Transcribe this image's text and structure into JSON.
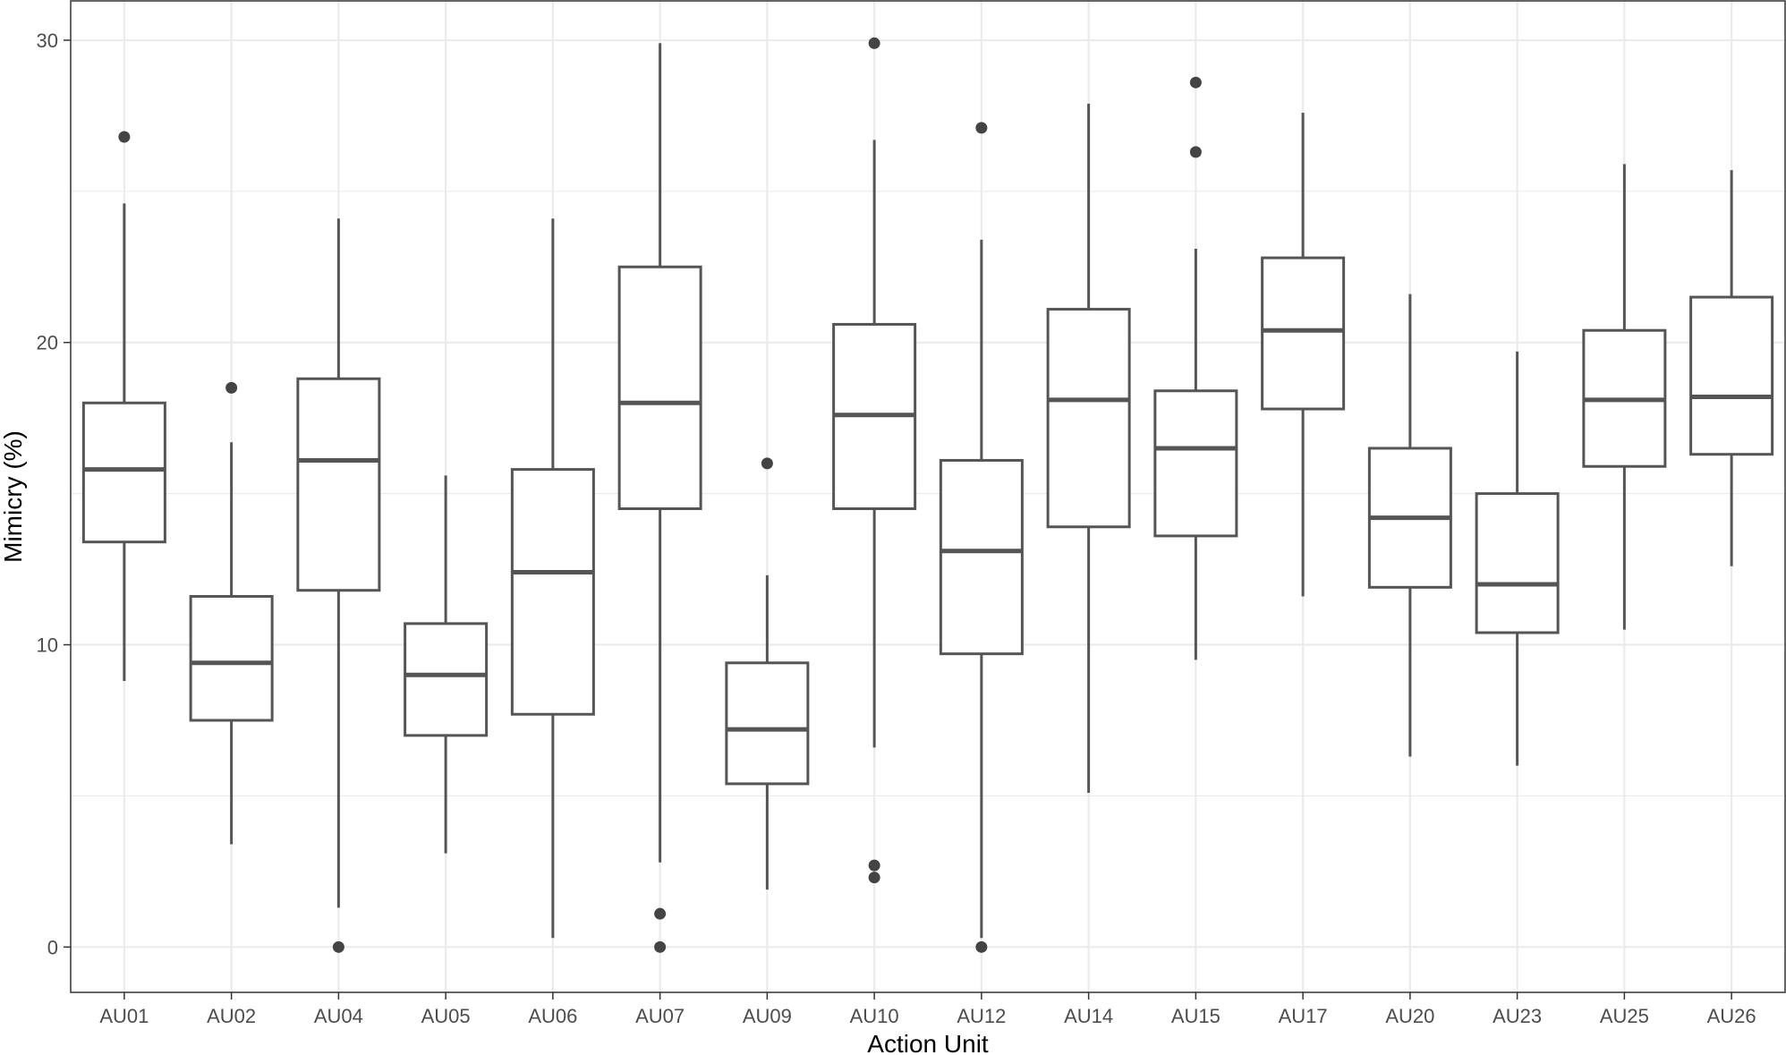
{
  "chart_data": {
    "type": "boxplot",
    "xlabel": "Action Unit",
    "ylabel": "Mimicry (%)",
    "ylim": [
      -1.5,
      31.3
    ],
    "yticks": [
      0,
      10,
      20,
      30
    ],
    "ytick_labels": [
      "0",
      "10",
      "20",
      "30"
    ],
    "y_minor_ticks": [
      5,
      15,
      25
    ],
    "grid": true,
    "theme": "bw",
    "colors": {
      "box_line": "#555555",
      "outlier": "#444444",
      "grid": "#ebebeb",
      "panel_border": "#333333"
    },
    "categories": [
      "AU01",
      "AU02",
      "AU04",
      "AU05",
      "AU06",
      "AU07",
      "AU09",
      "AU10",
      "AU12",
      "AU14",
      "AU15",
      "AU17",
      "AU20",
      "AU23",
      "AU25",
      "AU26"
    ],
    "boxes": [
      {
        "label": "AU01",
        "whisker_low": 8.8,
        "q1": 13.4,
        "median": 15.8,
        "q3": 18.0,
        "whisker_high": 24.6,
        "outliers": [
          26.8
        ]
      },
      {
        "label": "AU02",
        "whisker_low": 3.4,
        "q1": 7.5,
        "median": 9.4,
        "q3": 11.6,
        "whisker_high": 16.7,
        "outliers": [
          18.5
        ]
      },
      {
        "label": "AU04",
        "whisker_low": 1.3,
        "q1": 11.8,
        "median": 16.1,
        "q3": 18.8,
        "whisker_high": 24.1,
        "outliers": [
          0.0
        ]
      },
      {
        "label": "AU05",
        "whisker_low": 3.1,
        "q1": 7.0,
        "median": 9.0,
        "q3": 10.7,
        "whisker_high": 15.6,
        "outliers": []
      },
      {
        "label": "AU06",
        "whisker_low": 0.3,
        "q1": 7.7,
        "median": 12.4,
        "q3": 15.8,
        "whisker_high": 24.1,
        "outliers": []
      },
      {
        "label": "AU07",
        "whisker_low": 2.8,
        "q1": 14.5,
        "median": 18.0,
        "q3": 22.5,
        "whisker_high": 29.9,
        "outliers": [
          1.1,
          0.0
        ]
      },
      {
        "label": "AU09",
        "whisker_low": 1.9,
        "q1": 5.4,
        "median": 7.2,
        "q3": 9.4,
        "whisker_high": 12.3,
        "outliers": [
          16.0
        ]
      },
      {
        "label": "AU10",
        "whisker_low": 6.6,
        "q1": 14.5,
        "median": 17.6,
        "q3": 20.6,
        "whisker_high": 26.7,
        "outliers": [
          29.9,
          2.7,
          2.3
        ]
      },
      {
        "label": "AU12",
        "whisker_low": 0.3,
        "q1": 9.7,
        "median": 13.1,
        "q3": 16.1,
        "whisker_high": 23.4,
        "outliers": [
          27.1,
          0.0
        ]
      },
      {
        "label": "AU14",
        "whisker_low": 5.1,
        "q1": 13.9,
        "median": 18.1,
        "q3": 21.1,
        "whisker_high": 27.9,
        "outliers": []
      },
      {
        "label": "AU15",
        "whisker_low": 9.5,
        "q1": 13.6,
        "median": 16.5,
        "q3": 18.4,
        "whisker_high": 23.1,
        "outliers": [
          28.6,
          26.3
        ]
      },
      {
        "label": "AU17",
        "whisker_low": 11.6,
        "q1": 17.8,
        "median": 20.4,
        "q3": 22.8,
        "whisker_high": 27.6,
        "outliers": []
      },
      {
        "label": "AU20",
        "whisker_low": 6.3,
        "q1": 11.9,
        "median": 14.2,
        "q3": 16.5,
        "whisker_high": 21.6,
        "outliers": []
      },
      {
        "label": "AU23",
        "whisker_low": 6.0,
        "q1": 10.4,
        "median": 12.0,
        "q3": 15.0,
        "whisker_high": 19.7,
        "outliers": []
      },
      {
        "label": "AU25",
        "whisker_low": 10.5,
        "q1": 15.9,
        "median": 18.1,
        "q3": 20.4,
        "whisker_high": 25.9,
        "outliers": []
      },
      {
        "label": "AU26",
        "whisker_low": 12.6,
        "q1": 16.3,
        "median": 18.2,
        "q3": 21.5,
        "whisker_high": 25.7,
        "outliers": []
      }
    ]
  }
}
